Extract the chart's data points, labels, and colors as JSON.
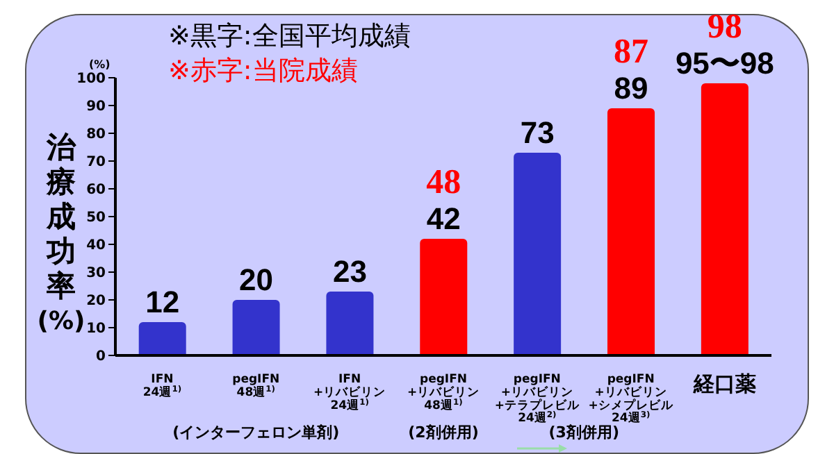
{
  "chart_data": {
    "type": "bar",
    "ylabel": "治療成功率\n(%)",
    "categories": [
      "IFN\n24週$^{1)}$",
      "pegIFN\n48週$^{1)}$",
      "IFN\n+リバビリン\n24週$^{1)}$",
      "pegIFN\n+リバビリン\n48週$^{1)}$",
      "pegIFN\n+リバビリン\n+テラプレビル\n24週$^{2)}$",
      "pegIFN\n+リバビリン\n+シメプレビル\n24週$^{3)}$",
      "経口薬"
    ],
    "values": [
      12,
      20,
      23,
      42,
      73,
      89,
      98
    ],
    "colors": [
      "#3333cc",
      "#3333cc",
      "#3333cc",
      "#ff0000",
      "#3333cc",
      "#ff0000",
      "#ff0000"
    ],
    "value_labels": [
      "12",
      "20",
      "23",
      "42",
      "73",
      "89",
      null
    ],
    "ylim": [
      0,
      100
    ],
    "yticks": [
      0,
      10,
      20,
      30,
      40,
      50,
      60,
      70,
      80,
      90,
      100
    ],
    "grid": false,
    "legend": false,
    "annotations": [
      "※黒字:全国平均成績",
      "※赤字:当院成績",
      "(%)",
      "(インターフェロン単剤)",
      "(2剤併用)",
      "(3剤併用)",
      {
        "text": "95〜98",
        "x": "経口薬",
        "y": 98
      },
      "48",
      "87",
      "98"
    ]
  }
}
